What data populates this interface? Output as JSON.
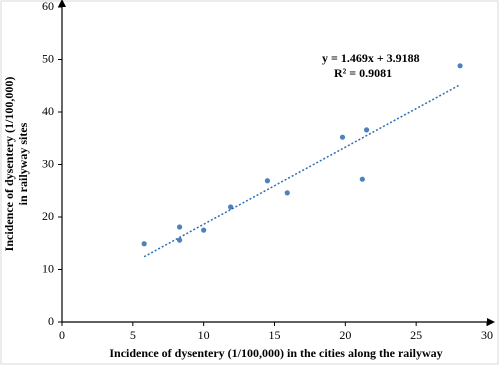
{
  "chart_data": {
    "type": "scatter",
    "xlabel": "Incidence of dysentery (1/100,000) in the cities along the railyway",
    "ylabel_lines": [
      "Incidence of dysentery (1/100,000)",
      "in railyway sites"
    ],
    "x": [
      5.8,
      8.3,
      8.3,
      10.0,
      11.9,
      14.5,
      15.9,
      19.8,
      21.5,
      21.2,
      28.1
    ],
    "series": [
      {
        "color": "#4f81bd",
        "values": [
          14.9,
          18.1,
          15.6,
          17.5,
          21.9,
          26.9,
          24.6,
          35.2,
          36.6,
          27.2,
          48.8
        ]
      }
    ],
    "trendline": {
      "slope": 1.469,
      "intercept": 3.9188,
      "color": "#2e6db4",
      "equation": "y = 1.469x + 3.9188",
      "r2": "R² = 0.9081"
    },
    "xlim": [
      0,
      30
    ],
    "xticks": [
      0,
      5,
      10,
      15,
      20,
      25,
      30
    ],
    "ylim": [
      0,
      60
    ],
    "yticks": [
      0,
      10,
      20,
      30,
      40,
      50,
      60
    ],
    "grid": false
  }
}
